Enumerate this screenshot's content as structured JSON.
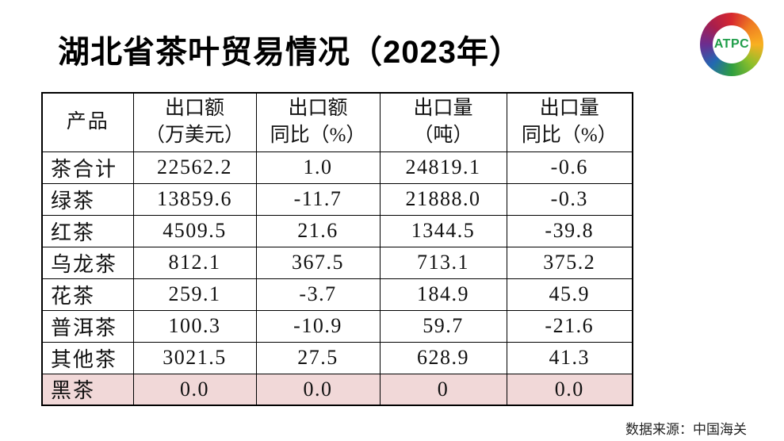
{
  "title": "湖北省茶叶贸易情况（2023年）",
  "logo": {
    "label": "ATPC",
    "text_color": "#1f9d49",
    "ring_colors": [
      "#d7282f",
      "#ef7d22",
      "#f9b021",
      "#8cbf2b",
      "#2f9e41",
      "#2268b2",
      "#6b2d90",
      "#a81e4d"
    ]
  },
  "table": {
    "columns": [
      {
        "line1": "产品",
        "line2": ""
      },
      {
        "line1": "出口额",
        "line2": "（万美元）"
      },
      {
        "line1": "出口额",
        "line2": "同比（%）"
      },
      {
        "line1": "出口量",
        "line2": "（吨）"
      },
      {
        "line1": "出口量",
        "line2": "同比（%）"
      }
    ],
    "rows": [
      {
        "cells": [
          "茶合计",
          "22562.2",
          "1.0",
          "24819.1",
          "-0.6"
        ],
        "highlighted": false
      },
      {
        "cells": [
          "绿茶",
          "13859.6",
          "-11.7",
          "21888.0",
          "-0.3"
        ],
        "highlighted": false
      },
      {
        "cells": [
          "红茶",
          "4509.5",
          "21.6",
          "1344.5",
          "-39.8"
        ],
        "highlighted": false
      },
      {
        "cells": [
          "乌龙茶",
          "812.1",
          "367.5",
          "713.1",
          "375.2"
        ],
        "highlighted": false
      },
      {
        "cells": [
          "花茶",
          "259.1",
          "-3.7",
          "184.9",
          "45.9"
        ],
        "highlighted": false
      },
      {
        "cells": [
          "普洱茶",
          "100.3",
          "-10.9",
          "59.7",
          "-21.6"
        ],
        "highlighted": false
      },
      {
        "cells": [
          "其他茶",
          "3021.5",
          "27.5",
          "628.9",
          "41.3"
        ],
        "highlighted": false
      },
      {
        "cells": [
          "黑茶",
          "0.0",
          "0.0",
          "0",
          "0.0"
        ],
        "highlighted": true
      }
    ],
    "highlight_color": "#f1d8d8",
    "border_color": "#000000"
  },
  "source_note": "数据来源：中国海关"
}
